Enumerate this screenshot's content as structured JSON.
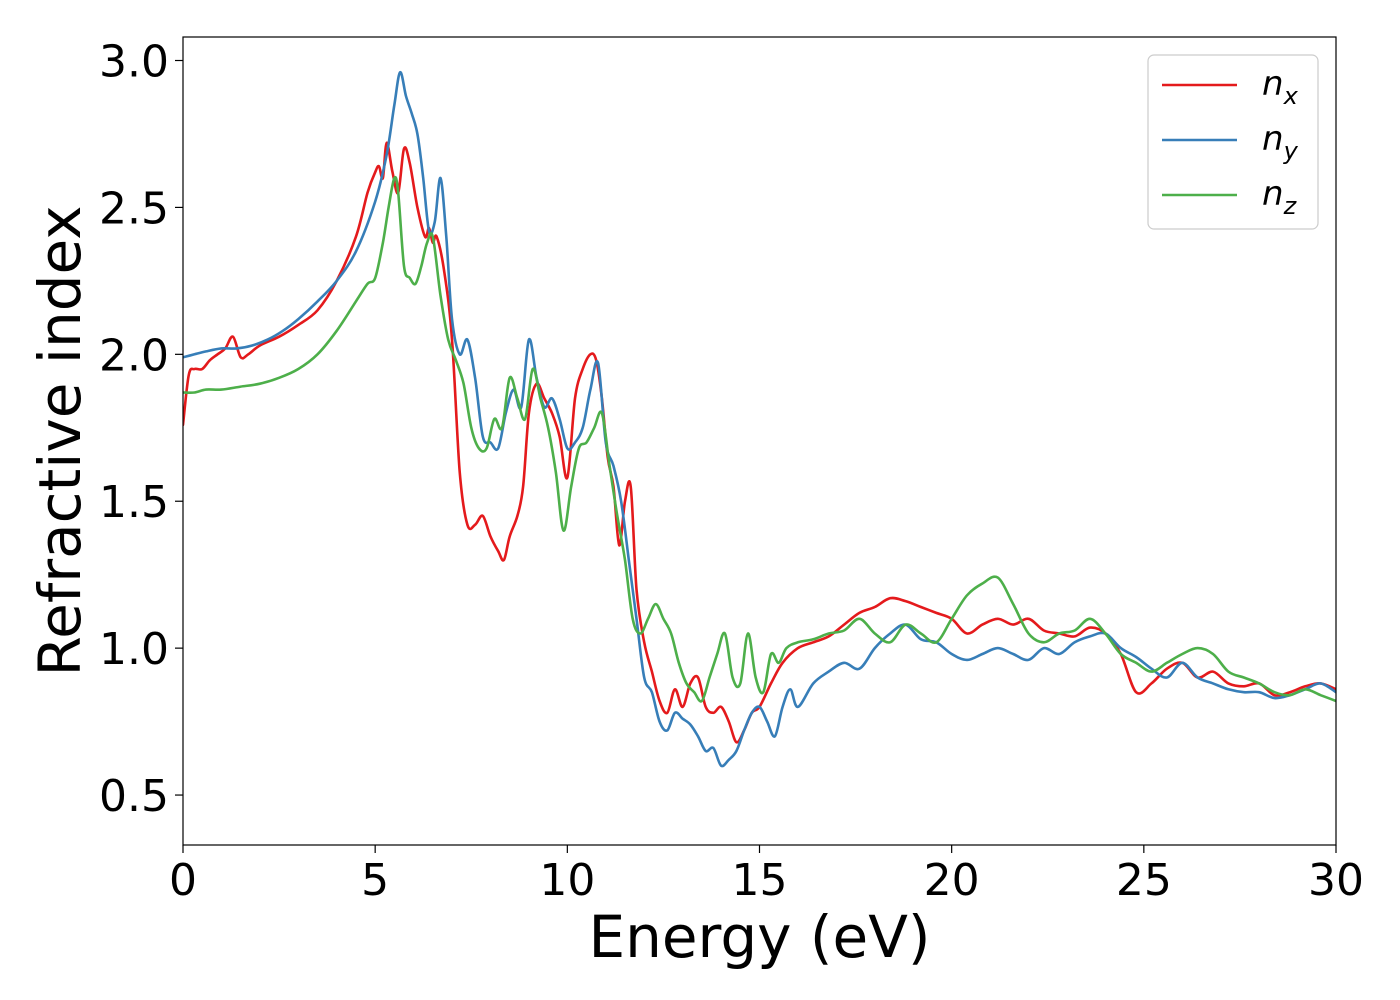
{
  "chart_data": {
    "type": "line",
    "title": "",
    "xlabel": "Energy (eV)",
    "ylabel": "Refractive index",
    "xlim": [
      0,
      30
    ],
    "ylim": [
      0.33,
      3.08
    ],
    "x_ticks": [
      0,
      5,
      10,
      15,
      20,
      25,
      30
    ],
    "x_tick_labels": [
      "0",
      "5",
      "10",
      "15",
      "20",
      "25",
      "30"
    ],
    "y_ticks": [
      0.5,
      1.0,
      1.5,
      2.0,
      2.5,
      3.0
    ],
    "y_tick_labels": [
      "0.5",
      "1.0",
      "1.5",
      "2.0",
      "2.5",
      "3.0"
    ],
    "grid": false,
    "legend_position": "top-right",
    "series": [
      {
        "name": "n",
        "subscript": "x",
        "color": "#e41a1c",
        "x": [
          0,
          0.15,
          0.3,
          0.5,
          0.7,
          0.9,
          1.1,
          1.3,
          1.5,
          1.7,
          2.0,
          2.5,
          3.0,
          3.5,
          4.0,
          4.5,
          4.8,
          5.0,
          5.1,
          5.2,
          5.3,
          5.45,
          5.6,
          5.75,
          5.9,
          6.1,
          6.3,
          6.4,
          6.5,
          6.6,
          6.8,
          7.0,
          7.2,
          7.4,
          7.6,
          7.8,
          8.0,
          8.2,
          8.35,
          8.5,
          8.7,
          8.85,
          9.0,
          9.2,
          9.4,
          9.6,
          9.8,
          10.0,
          10.2,
          10.4,
          10.6,
          10.75,
          10.9,
          11.05,
          11.2,
          11.35,
          11.5,
          11.65,
          11.8,
          12.0,
          12.2,
          12.4,
          12.6,
          12.8,
          13.0,
          13.2,
          13.4,
          13.6,
          13.8,
          14.0,
          14.2,
          14.4,
          14.6,
          14.8,
          15.0,
          15.3,
          15.6,
          16.0,
          16.4,
          16.8,
          17.2,
          17.6,
          18.0,
          18.4,
          18.8,
          19.2,
          19.6,
          20.0,
          20.4,
          20.8,
          21.2,
          21.6,
          22.0,
          22.4,
          22.8,
          23.2,
          23.6,
          24.0,
          24.4,
          24.8,
          25.2,
          25.6,
          26.0,
          26.4,
          26.8,
          27.2,
          27.6,
          28.0,
          28.4,
          28.8,
          29.2,
          29.6,
          30.0
        ],
        "values": [
          1.76,
          1.93,
          1.95,
          1.95,
          1.98,
          2.0,
          2.02,
          2.06,
          1.99,
          2.0,
          2.03,
          2.06,
          2.1,
          2.15,
          2.25,
          2.4,
          2.55,
          2.62,
          2.64,
          2.6,
          2.72,
          2.62,
          2.55,
          2.7,
          2.65,
          2.5,
          2.4,
          2.43,
          2.38,
          2.4,
          2.28,
          2.05,
          1.6,
          1.42,
          1.42,
          1.45,
          1.38,
          1.33,
          1.3,
          1.38,
          1.45,
          1.55,
          1.8,
          1.9,
          1.85,
          1.8,
          1.72,
          1.58,
          1.85,
          1.95,
          2.0,
          1.98,
          1.85,
          1.65,
          1.55,
          1.35,
          1.5,
          1.55,
          1.2,
          1.02,
          0.92,
          0.82,
          0.78,
          0.86,
          0.8,
          0.88,
          0.9,
          0.8,
          0.78,
          0.8,
          0.75,
          0.68,
          0.72,
          0.78,
          0.8,
          0.88,
          0.95,
          1.0,
          1.02,
          1.04,
          1.08,
          1.12,
          1.14,
          1.17,
          1.16,
          1.14,
          1.12,
          1.1,
          1.05,
          1.08,
          1.1,
          1.08,
          1.1,
          1.06,
          1.05,
          1.04,
          1.07,
          1.05,
          0.98,
          0.85,
          0.88,
          0.93,
          0.95,
          0.9,
          0.92,
          0.88,
          0.87,
          0.88,
          0.84,
          0.85,
          0.87,
          0.88,
          0.86
        ]
      },
      {
        "name": "n",
        "subscript": "y",
        "color": "#377eb8",
        "x": [
          0,
          0.3,
          0.6,
          1.0,
          1.4,
          1.8,
          2.2,
          2.6,
          3.0,
          3.5,
          4.0,
          4.5,
          5.0,
          5.3,
          5.5,
          5.65,
          5.8,
          5.95,
          6.1,
          6.25,
          6.4,
          6.55,
          6.7,
          6.85,
          7.0,
          7.2,
          7.4,
          7.6,
          7.8,
          8.0,
          8.2,
          8.4,
          8.6,
          8.8,
          9.0,
          9.2,
          9.4,
          9.6,
          9.8,
          10.0,
          10.2,
          10.4,
          10.6,
          10.8,
          11.0,
          11.2,
          11.4,
          11.6,
          11.8,
          12.0,
          12.2,
          12.4,
          12.6,
          12.8,
          13.0,
          13.2,
          13.4,
          13.6,
          13.8,
          14.0,
          14.2,
          14.4,
          14.6,
          14.8,
          15.0,
          15.2,
          15.4,
          15.6,
          15.8,
          16.0,
          16.4,
          16.8,
          17.2,
          17.6,
          18.0,
          18.4,
          18.8,
          19.2,
          19.6,
          20.0,
          20.4,
          20.8,
          21.2,
          21.6,
          22.0,
          22.4,
          22.8,
          23.2,
          23.6,
          24.0,
          24.4,
          24.8,
          25.2,
          25.6,
          26.0,
          26.4,
          26.8,
          27.2,
          27.6,
          28.0,
          28.4,
          28.8,
          29.2,
          29.6,
          30.0
        ],
        "values": [
          1.99,
          2.0,
          2.01,
          2.02,
          2.02,
          2.03,
          2.05,
          2.08,
          2.12,
          2.18,
          2.25,
          2.35,
          2.52,
          2.68,
          2.85,
          2.96,
          2.88,
          2.82,
          2.75,
          2.6,
          2.42,
          2.45,
          2.6,
          2.4,
          2.12,
          2.0,
          2.05,
          1.92,
          1.72,
          1.7,
          1.68,
          1.8,
          1.88,
          1.82,
          2.05,
          1.92,
          1.82,
          1.85,
          1.78,
          1.68,
          1.7,
          1.75,
          1.88,
          1.97,
          1.7,
          1.62,
          1.5,
          1.3,
          1.1,
          0.9,
          0.85,
          0.75,
          0.72,
          0.78,
          0.76,
          0.74,
          0.7,
          0.65,
          0.66,
          0.6,
          0.62,
          0.65,
          0.72,
          0.78,
          0.8,
          0.75,
          0.7,
          0.8,
          0.86,
          0.8,
          0.88,
          0.92,
          0.95,
          0.93,
          1.0,
          1.05,
          1.08,
          1.03,
          1.02,
          0.98,
          0.96,
          0.98,
          1.0,
          0.98,
          0.96,
          1.0,
          0.98,
          1.02,
          1.04,
          1.05,
          1.0,
          0.97,
          0.93,
          0.9,
          0.95,
          0.9,
          0.88,
          0.86,
          0.85,
          0.85,
          0.83,
          0.84,
          0.86,
          0.88,
          0.85
        ]
      },
      {
        "name": "n",
        "subscript": "z",
        "color": "#4daf4a",
        "x": [
          0,
          0.3,
          0.6,
          1.0,
          1.5,
          2.0,
          2.5,
          3.0,
          3.5,
          4.0,
          4.5,
          4.8,
          5.0,
          5.2,
          5.35,
          5.5,
          5.6,
          5.75,
          5.9,
          6.05,
          6.2,
          6.35,
          6.5,
          6.7,
          6.9,
          7.1,
          7.3,
          7.5,
          7.7,
          7.9,
          8.1,
          8.3,
          8.5,
          8.7,
          8.9,
          9.1,
          9.3,
          9.5,
          9.7,
          9.9,
          10.1,
          10.3,
          10.5,
          10.7,
          10.9,
          11.1,
          11.3,
          11.5,
          11.7,
          11.9,
          12.1,
          12.3,
          12.5,
          12.7,
          12.9,
          13.1,
          13.3,
          13.5,
          13.7,
          13.9,
          14.1,
          14.3,
          14.5,
          14.7,
          14.9,
          15.1,
          15.3,
          15.5,
          15.7,
          16.0,
          16.4,
          16.8,
          17.2,
          17.6,
          18.0,
          18.4,
          18.8,
          19.2,
          19.6,
          20.0,
          20.4,
          20.8,
          21.2,
          21.6,
          22.0,
          22.4,
          22.8,
          23.2,
          23.6,
          24.0,
          24.4,
          24.8,
          25.2,
          25.6,
          26.0,
          26.4,
          26.8,
          27.2,
          27.6,
          28.0,
          28.4,
          28.8,
          29.2,
          29.6,
          30.0
        ],
        "values": [
          1.87,
          1.87,
          1.88,
          1.88,
          1.89,
          1.9,
          1.92,
          1.95,
          2.0,
          2.08,
          2.18,
          2.24,
          2.26,
          2.38,
          2.5,
          2.6,
          2.55,
          2.3,
          2.26,
          2.24,
          2.3,
          2.38,
          2.4,
          2.2,
          2.05,
          1.98,
          1.9,
          1.75,
          1.68,
          1.68,
          1.78,
          1.75,
          1.92,
          1.85,
          1.78,
          1.95,
          1.85,
          1.75,
          1.6,
          1.4,
          1.55,
          1.68,
          1.7,
          1.75,
          1.8,
          1.62,
          1.45,
          1.3,
          1.1,
          1.05,
          1.1,
          1.15,
          1.1,
          1.05,
          0.95,
          0.88,
          0.85,
          0.82,
          0.9,
          0.98,
          1.05,
          0.9,
          0.88,
          1.05,
          0.9,
          0.85,
          0.98,
          0.95,
          1.0,
          1.02,
          1.03,
          1.05,
          1.06,
          1.1,
          1.05,
          1.02,
          1.08,
          1.05,
          1.02,
          1.1,
          1.18,
          1.22,
          1.24,
          1.15,
          1.05,
          1.02,
          1.05,
          1.06,
          1.1,
          1.05,
          0.98,
          0.95,
          0.92,
          0.95,
          0.98,
          1.0,
          0.98,
          0.92,
          0.9,
          0.88,
          0.85,
          0.84,
          0.86,
          0.84,
          0.82
        ]
      }
    ]
  }
}
